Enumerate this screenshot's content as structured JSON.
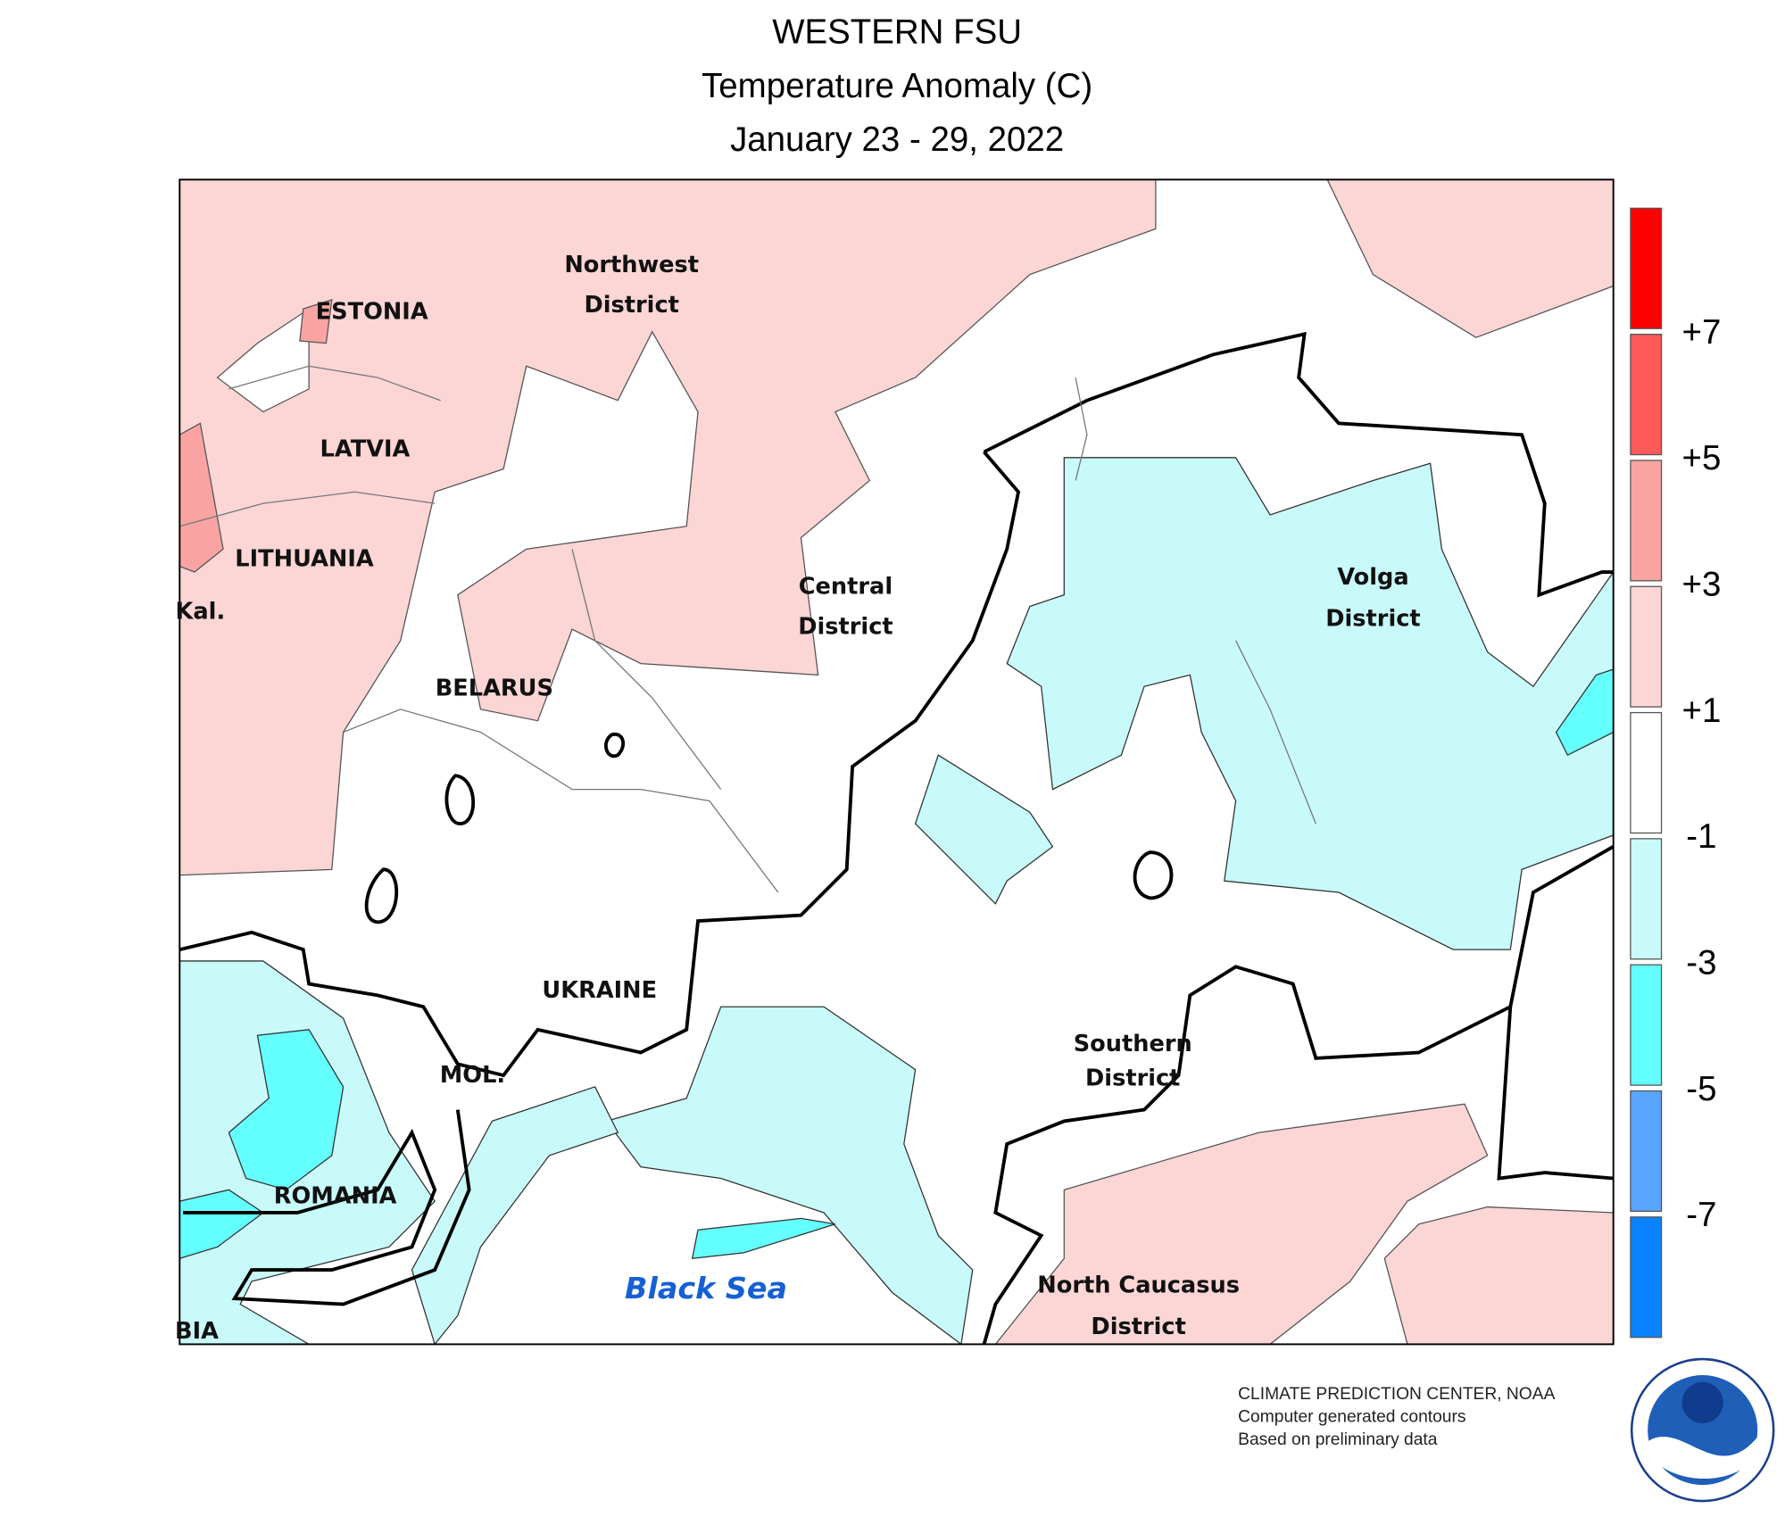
{
  "header": {
    "title": "WESTERN FSU",
    "subtitle": "Temperature Anomaly (C)",
    "dates": "January 23 - 29, 2022"
  },
  "map": {
    "labels": [
      "ESTONIA",
      "Northwest",
      "District",
      "LATVIA",
      "LITHUANIA",
      "Kal.",
      "Central",
      "District",
      "BELARUS",
      "Volga",
      "District",
      "UKRAINE",
      "MOL.",
      "Southern",
      "District",
      "ROMANIA",
      "Black Sea",
      "North Caucasus",
      "District",
      "BIA"
    ]
  },
  "legend": {
    "colors": [
      "#ff0000",
      "#ff5a5a",
      "#f9a3a3",
      "#fcd5d5",
      "#ffffff",
      "#c8fafa",
      "#64ffff",
      "#5aa5ff",
      "#0a82ff"
    ],
    "labels": [
      "+7",
      "+5",
      "+3",
      "+1",
      "-1",
      "-3",
      "-5",
      "-7"
    ]
  },
  "footer": {
    "lines": [
      "CLIMATE PREDICTION CENTER, NOAA",
      "Computer generated contours",
      "Based on preliminary data"
    ]
  }
}
